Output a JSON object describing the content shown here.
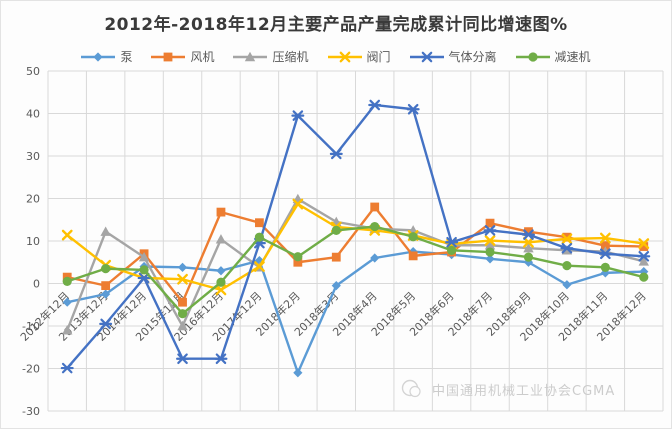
{
  "window": {
    "background": "#fdfdfd",
    "border_color": "#e3e3e3"
  },
  "colors": {
    "grid": "#d9d9d9",
    "axis_text": "#595959",
    "title_text": "#3a3a3a",
    "legend_text": "#595959",
    "watermark": "#cccccc"
  },
  "chart_data": {
    "type": "line",
    "title": "2012年-2018年12月主要产品产量完成累计同比增速图%",
    "categories": [
      "2012年12月",
      "2013年12月",
      "2014年12月",
      "2015年12月",
      "2016年12月",
      "2017年12月",
      "2018年2月",
      "2018年3月",
      "2018年4月",
      "2018年5月",
      "2018年6月",
      "2018年7月",
      "2018年9月",
      "2018年10月",
      "2018年11月",
      "2018年12月"
    ],
    "series": [
      {
        "name": "泵",
        "marker": "diamond",
        "color": "#5B9BD5",
        "values": [
          -4.4,
          -2.5,
          4.0,
          3.8,
          3.0,
          5.4,
          -21.0,
          -0.5,
          6.0,
          7.5,
          6.8,
          5.8,
          5.0,
          -0.3,
          2.5,
          2.8
        ]
      },
      {
        "name": "风机",
        "marker": "square",
        "color": "#ED7D31",
        "values": [
          1.5,
          -0.5,
          7.0,
          -4.4,
          16.8,
          14.3,
          5.0,
          6.2,
          18.0,
          6.5,
          7.4,
          14.2,
          12.2,
          10.9,
          8.9,
          8.7
        ]
      },
      {
        "name": "压缩机",
        "marker": "triangle",
        "color": "#A5A5A5",
        "values": [
          -11.0,
          12.2,
          6.2,
          -10.0,
          10.4,
          3.8,
          19.9,
          14.5,
          12.9,
          12.5,
          9.0,
          9.0,
          8.3,
          7.8,
          7.5,
          5.2
        ]
      },
      {
        "name": "阀门",
        "marker": "x",
        "color": "#FFC000",
        "values": [
          11.4,
          4.3,
          1.3,
          1.0,
          -1.5,
          4.0,
          18.7,
          13.3,
          12.5,
          11.3,
          9.3,
          10.1,
          9.7,
          10.5,
          10.7,
          9.4
        ]
      },
      {
        "name": "气体分离",
        "marker": "asterisk",
        "color": "#4472C4",
        "values": [
          -19.9,
          -9.5,
          1.3,
          -17.7,
          -17.7,
          9.5,
          39.5,
          30.5,
          42.0,
          41.0,
          9.7,
          12.5,
          11.5,
          8.3,
          7.0,
          6.4
        ]
      },
      {
        "name": "减速机",
        "marker": "circle",
        "color": "#70AD47",
        "values": [
          0.5,
          3.5,
          3.2,
          -7.1,
          0.3,
          10.9,
          6.3,
          12.5,
          13.4,
          11.0,
          7.8,
          7.4,
          6.2,
          4.2,
          3.8,
          1.5
        ]
      }
    ],
    "y_axis": {
      "min": -30,
      "max": 50,
      "step": 10
    },
    "grid": true,
    "legend_position": "top",
    "x_labels_rotation": -45,
    "watermark": "中国通用机械工业协会CGMA"
  }
}
